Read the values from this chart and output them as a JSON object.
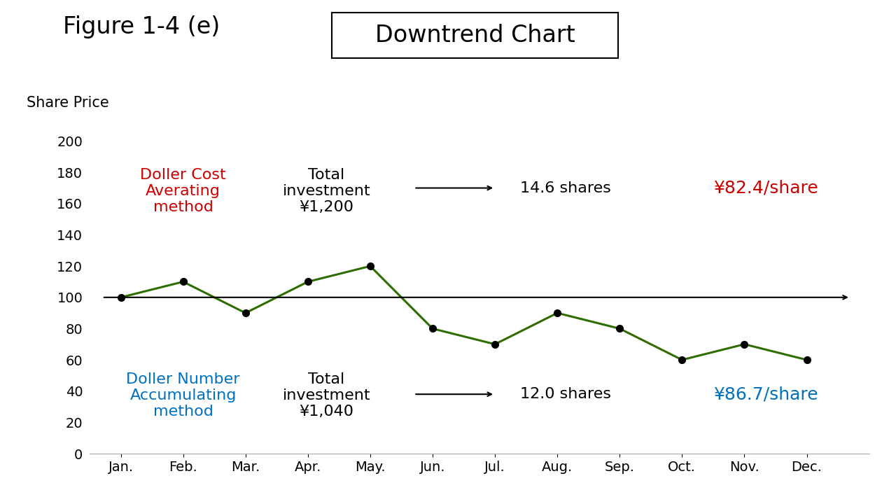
{
  "title_left": "Figure 1-4 (e)",
  "title_right": "Downtrend Chart",
  "ylabel": "Share Price",
  "months": [
    "Jan.",
    "Feb.",
    "Mar.",
    "Apr.",
    "May.",
    "Jun.",
    "Jul.",
    "Aug.",
    "Sep.",
    "Oct.",
    "Nov.",
    "Dec."
  ],
  "share_prices": [
    100,
    110,
    90,
    110,
    120,
    80,
    70,
    90,
    80,
    60,
    70,
    60
  ],
  "line_color": "#2e6e00",
  "horizontal_line_y": 100,
  "ylim": [
    0,
    200
  ],
  "yticks": [
    0,
    20,
    40,
    60,
    80,
    100,
    120,
    140,
    160,
    180,
    200
  ],
  "bg_color": "#ffffff",
  "dca_color": "#cc0000",
  "dna_color": "#0070c0",
  "dca_label": "Doller Cost\nAverating\nmethod",
  "dna_label": "Doller Number\nAccumulating\nmethod",
  "dca_invest_text": "Total\ninvestment\n¥1,200",
  "dna_invest_text": "Total\ninvestment\n¥1,040",
  "dca_shares": "14.6 shares",
  "dna_shares": "12.0 shares",
  "dca_price": "¥82.4/share",
  "dna_price": "¥86.7/share",
  "marker_color": "#000000",
  "marker_size": 7,
  "line_width": 2.2,
  "title_fontsize": 24,
  "label_fontsize": 15,
  "annotation_fontsize": 16,
  "tick_fontsize": 14,
  "price_fontsize": 18
}
